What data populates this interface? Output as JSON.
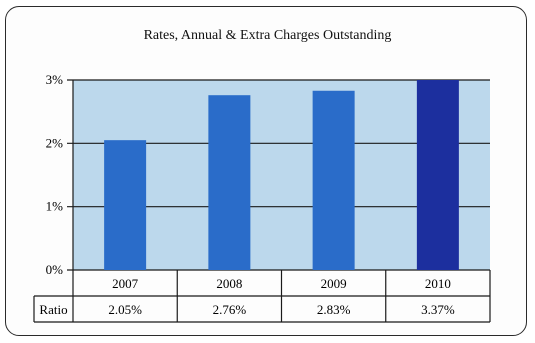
{
  "chart_data": {
    "type": "bar",
    "title": "Rates, Annual & Extra Charges Outstanding",
    "categories": [
      "2007",
      "2008",
      "2009",
      "2010"
    ],
    "values": [
      2.05,
      2.76,
      2.83,
      3.37
    ],
    "value_labels": [
      "2.05%",
      "2.76%",
      "2.83%",
      "3.37%"
    ],
    "yticks": [
      "0%",
      "1%",
      "2%",
      "3%"
    ],
    "ylim": [
      0,
      3
    ],
    "grid": true,
    "table_row_label": "Ratio",
    "colors": {
      "plot_background": "#bcd8ec",
      "bar": "#2a6cc9",
      "bar_highlight": "#1c2f9e",
      "gridline": "#1a1a1a"
    }
  }
}
